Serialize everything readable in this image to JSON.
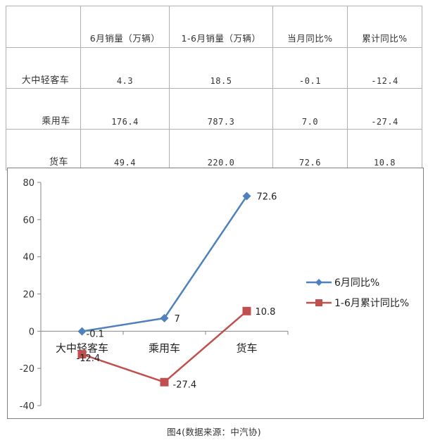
{
  "table": {
    "headers": [
      "",
      "6月销量（万辆）",
      "1-6月销量（万辆）",
      "当月同比%",
      "累计同比%"
    ],
    "rows": [
      {
        "label": "大中轻客车",
        "cells": [
          "4.3",
          "18.5",
          "-0.1",
          "-12.4"
        ]
      },
      {
        "label": "乘用车",
        "cells": [
          "176.4",
          "787.3",
          "7.0",
          "-27.4"
        ]
      },
      {
        "label": "货车",
        "cells": [
          "49.4",
          "220.0",
          "72.6",
          "10.8"
        ]
      }
    ]
  },
  "chart_data": {
    "type": "line",
    "categories": [
      "大中轻客车",
      "乘用车",
      "货车"
    ],
    "series": [
      {
        "name": "6月同比%",
        "values": [
          -0.1,
          7,
          72.6
        ],
        "labels": [
          "-0.1",
          "7",
          "72.6"
        ],
        "color": "#4f81bd",
        "marker": "diamond"
      },
      {
        "name": "1-6月累计同比%",
        "values": [
          -12.4,
          -27.4,
          10.8
        ],
        "labels": [
          "-12.4",
          "-27.4",
          "10.8"
        ],
        "color": "#c0504d",
        "marker": "square"
      }
    ],
    "yticks": [
      "80",
      "60",
      "40",
      "20",
      "0",
      "-20",
      "-40"
    ],
    "ylim": [
      -40,
      80
    ],
    "grid": false,
    "legend": "right"
  },
  "caption": "图4(数据来源：中汽协)"
}
